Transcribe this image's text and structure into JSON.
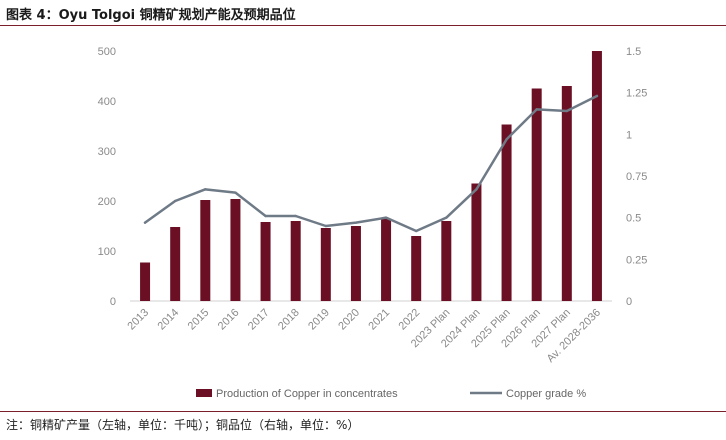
{
  "figure": {
    "title": "图表 4：Oyu Tolgoi 铜精矿规划产能及预期品位",
    "note": "注：铜精矿产量（左轴，单位：千吨）；铜品位（右轴，单位：%）"
  },
  "colors": {
    "bar": "#6b0f24",
    "line": "#6f7a87",
    "axis_text": "#8a8a8a",
    "rule": "#7a1f2b"
  },
  "chart_data": {
    "type": "bar",
    "categories": [
      "2013",
      "2014",
      "2015",
      "2016",
      "2017",
      "2018",
      "2019",
      "2020",
      "2021",
      "2022",
      "2023 Plan",
      "2024 Plan",
      "2025 Plan",
      "2026 Plan",
      "2027 Plan",
      "Av. 2028-2036"
    ],
    "series": [
      {
        "name": "Production of Copper in concentrates",
        "type": "bar",
        "axis": "left",
        "values": [
          77,
          148,
          202,
          204,
          158,
          160,
          146,
          150,
          165,
          130,
          160,
          235,
          353,
          425,
          430,
          500
        ]
      },
      {
        "name": "Copper grade %",
        "type": "line",
        "axis": "right",
        "values": [
          0.47,
          0.6,
          0.67,
          0.65,
          0.51,
          0.51,
          0.45,
          0.47,
          0.5,
          0.42,
          0.5,
          0.67,
          0.97,
          1.15,
          1.14,
          1.23
        ]
      }
    ],
    "y_left": {
      "ylim": [
        0,
        500
      ],
      "ticks": [
        "0",
        "100",
        "200",
        "300",
        "400",
        "500"
      ],
      "label": ""
    },
    "y_right": {
      "ylim": [
        0,
        1.5
      ],
      "ticks": [
        "0",
        "0.25",
        "0.5",
        "0.75",
        "1",
        "1.25",
        "1.5"
      ],
      "label": ""
    },
    "xlabel": "",
    "grid": false,
    "legend_position": "bottom"
  }
}
